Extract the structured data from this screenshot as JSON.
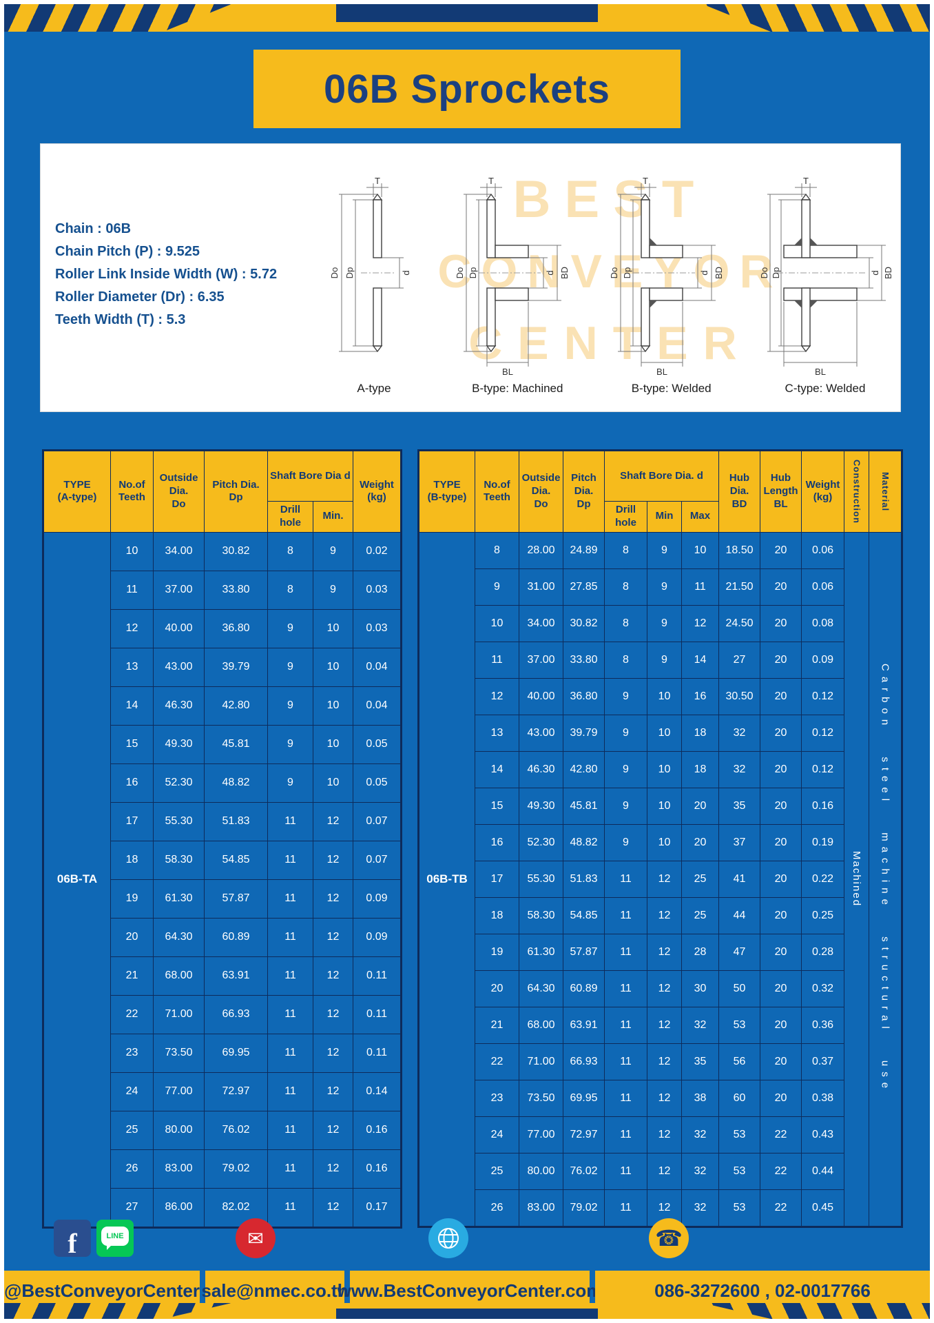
{
  "title": "06B Sprockets",
  "specs": [
    "Chain : 06B",
    "Chain Pitch (P) : 9.525",
    "Roller Link Inside Width (W) : 5.72",
    "Roller Diameter (Dr) : 6.35",
    "Teeth Width (T) : 5.3"
  ],
  "watermark": {
    "line1": "BEST",
    "line2": "CONVEYOR",
    "line3": "CENTER"
  },
  "diagrams": [
    {
      "caption": "A-type",
      "labels": {
        "t": "T",
        "do": "Do",
        "dp": "Dp",
        "d": "d"
      }
    },
    {
      "caption": "B-type: Machined",
      "labels": {
        "t": "T",
        "do": "Do",
        "dp": "Dp",
        "d": "d",
        "bd": "BD",
        "bl": "BL"
      }
    },
    {
      "caption": "B-type: Welded",
      "labels": {
        "t": "T",
        "do": "Do",
        "dp": "Dp",
        "d": "d",
        "bd": "BD",
        "bl": "BL"
      }
    },
    {
      "caption": "C-type: Welded",
      "labels": {
        "t": "T",
        "do": "Do",
        "dp": "Dp",
        "d": "d",
        "bd": "BD",
        "bl": "BL"
      }
    }
  ],
  "table_a": {
    "header": {
      "type": "TYPE\n(A-type)",
      "teeth": "No.of\nTeeth",
      "outside": "Outside\nDia.\nDo",
      "pitch": "Pitch Dia.\nDp",
      "shaft_bore": "Shaft Bore Dia d",
      "drill": "Drill hole",
      "min": "Min.",
      "weight": "Weight\n(kg)"
    },
    "type_label": "06B-TA",
    "rows": [
      [
        "10",
        "34.00",
        "30.82",
        "8",
        "9",
        "0.02"
      ],
      [
        "11",
        "37.00",
        "33.80",
        "8",
        "9",
        "0.03"
      ],
      [
        "12",
        "40.00",
        "36.80",
        "9",
        "10",
        "0.03"
      ],
      [
        "13",
        "43.00",
        "39.79",
        "9",
        "10",
        "0.04"
      ],
      [
        "14",
        "46.30",
        "42.80",
        "9",
        "10",
        "0.04"
      ],
      [
        "15",
        "49.30",
        "45.81",
        "9",
        "10",
        "0.05"
      ],
      [
        "16",
        "52.30",
        "48.82",
        "9",
        "10",
        "0.05"
      ],
      [
        "17",
        "55.30",
        "51.83",
        "11",
        "12",
        "0.07"
      ],
      [
        "18",
        "58.30",
        "54.85",
        "11",
        "12",
        "0.07"
      ],
      [
        "19",
        "61.30",
        "57.87",
        "11",
        "12",
        "0.09"
      ],
      [
        "20",
        "64.30",
        "60.89",
        "11",
        "12",
        "0.09"
      ],
      [
        "21",
        "68.00",
        "63.91",
        "11",
        "12",
        "0.11"
      ],
      [
        "22",
        "71.00",
        "66.93",
        "11",
        "12",
        "0.11"
      ],
      [
        "23",
        "73.50",
        "69.95",
        "11",
        "12",
        "0.11"
      ],
      [
        "24",
        "77.00",
        "72.97",
        "11",
        "12",
        "0.14"
      ],
      [
        "25",
        "80.00",
        "76.02",
        "11",
        "12",
        "0.16"
      ],
      [
        "26",
        "83.00",
        "79.02",
        "11",
        "12",
        "0.16"
      ],
      [
        "27",
        "86.00",
        "82.02",
        "11",
        "12",
        "0.17"
      ]
    ]
  },
  "table_b": {
    "header": {
      "type": "TYPE\n(B-type)",
      "teeth": "No.of\nTeeth",
      "outside": "Outside\nDia.\nDo",
      "pitch": "Pitch\nDia.\nDp",
      "shaft_bore": "Shaft Bore Dia.  d",
      "drill": "Drill hole",
      "min": "Min",
      "max": "Max",
      "hub_dia": "Hub\nDia.\nBD",
      "hub_len": "Hub\nLength\nBL",
      "weight": "Weight\n(kg)",
      "construction": "Construction",
      "material": "Material"
    },
    "type_label": "06B-TB",
    "construction_value": "Machined",
    "material_value": "Carbon steel machine structural use",
    "rows": [
      [
        "8",
        "28.00",
        "24.89",
        "8",
        "9",
        "10",
        "18.50",
        "20",
        "0.06"
      ],
      [
        "9",
        "31.00",
        "27.85",
        "8",
        "9",
        "11",
        "21.50",
        "20",
        "0.06"
      ],
      [
        "10",
        "34.00",
        "30.82",
        "8",
        "9",
        "12",
        "24.50",
        "20",
        "0.08"
      ],
      [
        "11",
        "37.00",
        "33.80",
        "8",
        "9",
        "14",
        "27",
        "20",
        "0.09"
      ],
      [
        "12",
        "40.00",
        "36.80",
        "9",
        "10",
        "16",
        "30.50",
        "20",
        "0.12"
      ],
      [
        "13",
        "43.00",
        "39.79",
        "9",
        "10",
        "18",
        "32",
        "20",
        "0.12"
      ],
      [
        "14",
        "46.30",
        "42.80",
        "9",
        "10",
        "18",
        "32",
        "20",
        "0.12"
      ],
      [
        "15",
        "49.30",
        "45.81",
        "9",
        "10",
        "20",
        "35",
        "20",
        "0.16"
      ],
      [
        "16",
        "52.30",
        "48.82",
        "9",
        "10",
        "20",
        "37",
        "20",
        "0.19"
      ],
      [
        "17",
        "55.30",
        "51.83",
        "11",
        "12",
        "25",
        "41",
        "20",
        "0.22"
      ],
      [
        "18",
        "58.30",
        "54.85",
        "11",
        "12",
        "25",
        "44",
        "20",
        "0.25"
      ],
      [
        "19",
        "61.30",
        "57.87",
        "11",
        "12",
        "28",
        "47",
        "20",
        "0.28"
      ],
      [
        "20",
        "64.30",
        "60.89",
        "11",
        "12",
        "30",
        "50",
        "20",
        "0.32"
      ],
      [
        "21",
        "68.00",
        "63.91",
        "11",
        "12",
        "32",
        "53",
        "20",
        "0.36"
      ],
      [
        "22",
        "71.00",
        "66.93",
        "11",
        "12",
        "35",
        "56",
        "20",
        "0.37"
      ],
      [
        "23",
        "73.50",
        "69.95",
        "11",
        "12",
        "38",
        "60",
        "20",
        "0.38"
      ],
      [
        "24",
        "77.00",
        "72.97",
        "11",
        "12",
        "32",
        "53",
        "22",
        "0.43"
      ],
      [
        "25",
        "80.00",
        "76.02",
        "11",
        "12",
        "32",
        "53",
        "22",
        "0.44"
      ],
      [
        "26",
        "83.00",
        "79.02",
        "11",
        "12",
        "32",
        "53",
        "22",
        "0.45"
      ]
    ]
  },
  "footer": {
    "facebook": "@BestConveyorCenter",
    "email": "sale@nmec.co.th",
    "website": "www.BestConveyorCenter.com",
    "phone": "086-3272600 , 02-0017766"
  },
  "icons": {
    "facebook_glyph": "f",
    "line_text": "LINE",
    "email_glyph": "✉",
    "phone_glyph": "☎"
  },
  "colors": {
    "yellow": "#F6BB1C",
    "navy": "#123A75",
    "blue": "#0F68B5",
    "red": "#D7282F",
    "line_green": "#06C755",
    "globe_blue": "#29ABE2"
  }
}
